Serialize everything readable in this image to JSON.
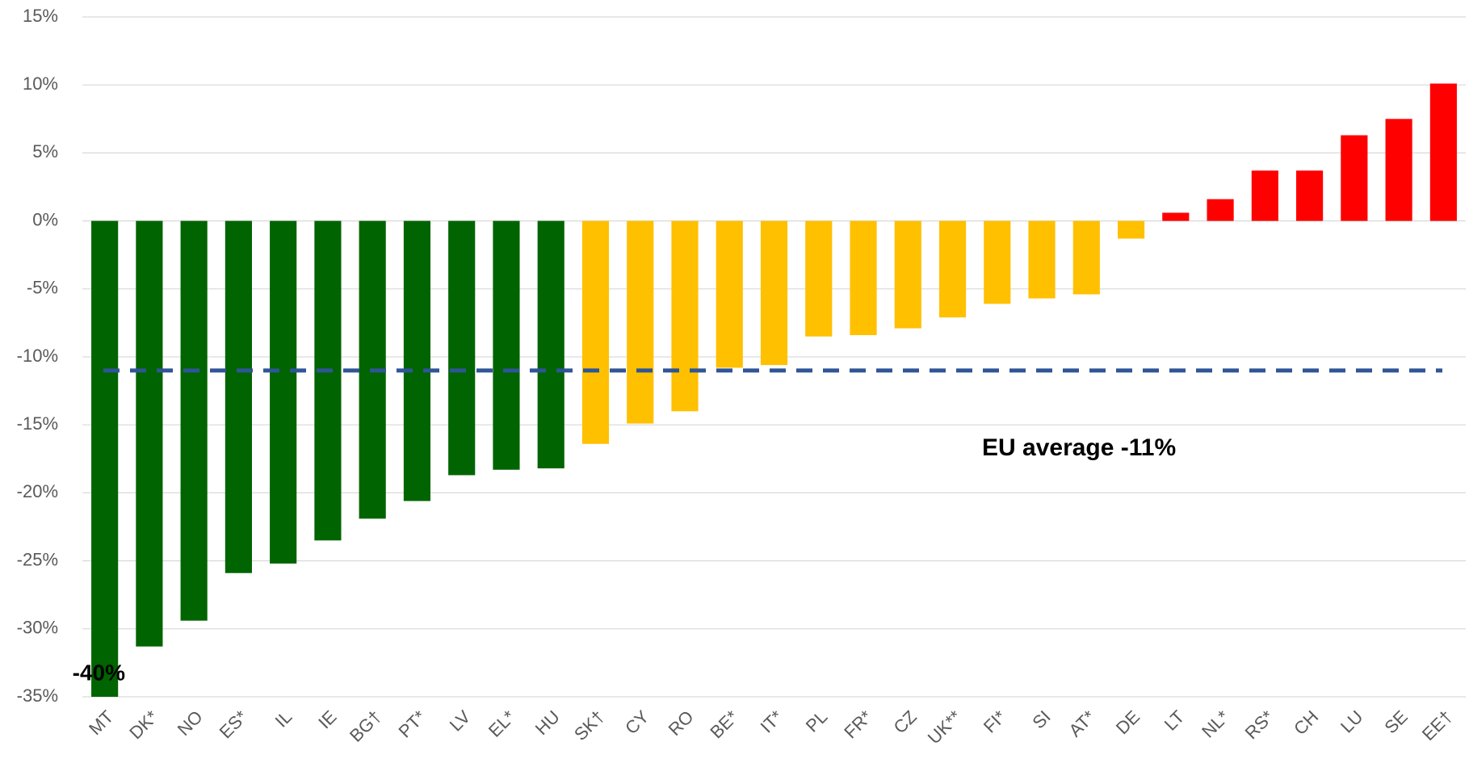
{
  "chart_data": {
    "type": "bar",
    "categories": [
      "MT",
      "DK*",
      "NO",
      "ES*",
      "IL",
      "IE",
      "BG†",
      "PT*",
      "LV",
      "EL*",
      "HU",
      "SK†",
      "CY",
      "RO",
      "BE*",
      "IT*",
      "PL",
      "FR*",
      "CZ",
      "UK**",
      "FI*",
      "SI",
      "AT*",
      "DE",
      "LT",
      "NL*",
      "RS*",
      "CH",
      "LU",
      "SE",
      "EE†"
    ],
    "values": [
      -40,
      -31.3,
      -29.4,
      -25.9,
      -25.2,
      -23.5,
      -21.9,
      -20.6,
      -18.7,
      -18.3,
      -18.2,
      -16.4,
      -14.9,
      -14.0,
      -10.8,
      -10.6,
      -8.5,
      -8.4,
      -7.9,
      -7.1,
      -6.1,
      -5.7,
      -5.4,
      -1.3,
      0.6,
      1.6,
      3.7,
      3.7,
      6.3,
      7.5,
      10.1
    ],
    "value_labels": [
      "-40%",
      null,
      null,
      null,
      null,
      null,
      null,
      null,
      null,
      null,
      null,
      null,
      null,
      null,
      null,
      null,
      null,
      null,
      null,
      null,
      null,
      null,
      null,
      null,
      null,
      null,
      null,
      null,
      null,
      null,
      null
    ],
    "colors": [
      "#006400",
      "#006400",
      "#006400",
      "#006400",
      "#006400",
      "#006400",
      "#006400",
      "#006400",
      "#006400",
      "#006400",
      "#006400",
      "#ffc000",
      "#ffc000",
      "#ffc000",
      "#ffc000",
      "#ffc000",
      "#ffc000",
      "#ffc000",
      "#ffc000",
      "#ffc000",
      "#ffc000",
      "#ffc000",
      "#ffc000",
      "#ffc000",
      "#ff0000",
      "#ff0000",
      "#ff0000",
      "#ff0000",
      "#ff0000",
      "#ff0000",
      "#ff0000"
    ],
    "ylim": [
      -35,
      15
    ],
    "yticks": [
      {
        "value": -35,
        "label": "-35%"
      },
      {
        "value": -30,
        "label": "-30%"
      },
      {
        "value": -25,
        "label": "-25%"
      },
      {
        "value": -20,
        "label": "-20%"
      },
      {
        "value": -15,
        "label": "-15%"
      },
      {
        "value": -10,
        "label": "-10%"
      },
      {
        "value": -5,
        "label": "-5%"
      },
      {
        "value": 0,
        "label": "0%"
      },
      {
        "value": 5,
        "label": "5%"
      },
      {
        "value": 10,
        "label": "10%"
      },
      {
        "value": 15,
        "label": "15%"
      }
    ],
    "grid": true,
    "average": {
      "value": -11,
      "label": "EU average -11%",
      "color": "#2f5597"
    }
  }
}
